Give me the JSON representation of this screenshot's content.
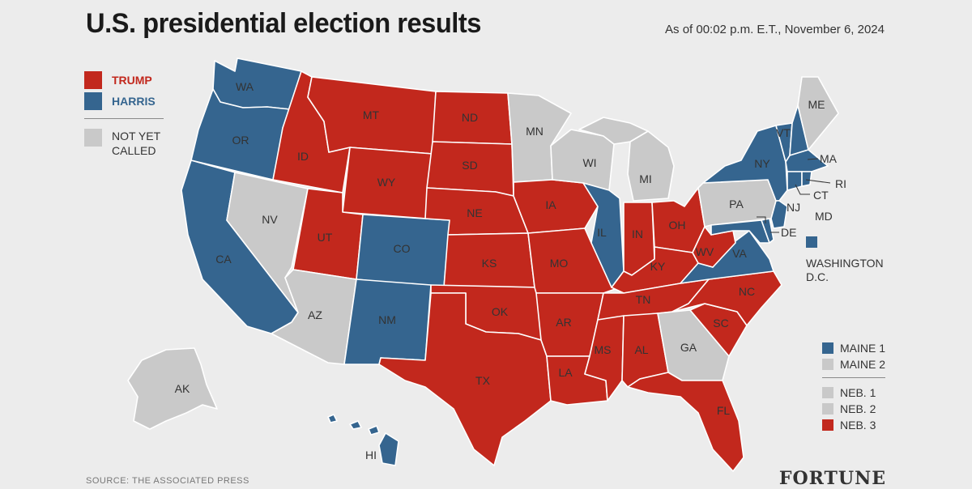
{
  "title": "U.S. presidential election results",
  "as_of": "As of 00:02 p.m. E.T., November 6, 2024",
  "colors": {
    "trump": "#c2281d",
    "harris": "#35658f",
    "not_called": "#c9c9c9",
    "background": "#ececec"
  },
  "legend": {
    "trump": "TRUMP",
    "harris": "HARRIS",
    "not_called_line1": "NOT YET",
    "not_called_line2": "CALLED"
  },
  "dc": {
    "label_line1": "WASHINGTON",
    "label_line2": "D.C.",
    "status": "harris"
  },
  "districts": [
    {
      "label": "MAINE 1",
      "status": "harris"
    },
    {
      "label": "MAINE 2",
      "status": "not_called"
    },
    {
      "label": "NEB. 1",
      "status": "not_called"
    },
    {
      "label": "NEB. 2",
      "status": "not_called"
    },
    {
      "label": "NEB. 3",
      "status": "trump"
    }
  ],
  "states": {
    "WA": "harris",
    "OR": "harris",
    "CA": "harris",
    "NV": "not_called",
    "ID": "trump",
    "MT": "trump",
    "WY": "trump",
    "UT": "trump",
    "AZ": "not_called",
    "CO": "harris",
    "NM": "harris",
    "ND": "trump",
    "SD": "trump",
    "NE": "trump",
    "KS": "trump",
    "OK": "trump",
    "TX": "trump",
    "MN": "not_called",
    "IA": "trump",
    "MO": "trump",
    "AR": "trump",
    "LA": "trump",
    "WI": "not_called",
    "IL": "harris",
    "MI": "not_called",
    "IN": "trump",
    "OH": "trump",
    "KY": "trump",
    "TN": "trump",
    "MS": "trump",
    "AL": "trump",
    "GA": "not_called",
    "FL": "trump",
    "SC": "trump",
    "NC": "trump",
    "VA": "harris",
    "WV": "trump",
    "PA": "not_called",
    "NY": "harris",
    "VT": "harris",
    "NH": "harris",
    "ME": "not_called",
    "MA": "harris",
    "RI": "harris",
    "CT": "harris",
    "NJ": "harris",
    "DE": "harris",
    "MD": "harris",
    "AK": "not_called",
    "HI": "harris"
  },
  "labels": {
    "WA": "WA",
    "OR": "OR",
    "CA": "CA",
    "NV": "NV",
    "ID": "ID",
    "MT": "MT",
    "WY": "WY",
    "UT": "UT",
    "AZ": "AZ",
    "CO": "CO",
    "NM": "NM",
    "ND": "ND",
    "SD": "SD",
    "NE": "NE",
    "KS": "KS",
    "OK": "OK",
    "TX": "TX",
    "MN": "MN",
    "IA": "IA",
    "MO": "MO",
    "AR": "AR",
    "LA": "LA",
    "WI": "WI",
    "IL": "IL",
    "MI": "MI",
    "IN": "IN",
    "OH": "OH",
    "KY": "KY",
    "TN": "TN",
    "MS": "MS",
    "AL": "AL",
    "GA": "GA",
    "FL": "FL",
    "SC": "SC",
    "NC": "NC",
    "VA": "VA",
    "WV": "WV",
    "PA": "PA",
    "NY": "NY",
    "VT": "VT",
    "ME": "ME",
    "MA": "MA",
    "RI": "RI",
    "CT": "CT",
    "NJ": "NJ",
    "MD": "MD",
    "DE": "DE",
    "AK": "AK",
    "HI": "HI"
  },
  "source": "SOURCE: THE ASSOCIATED PRESS",
  "brand": "FORTUNE"
}
